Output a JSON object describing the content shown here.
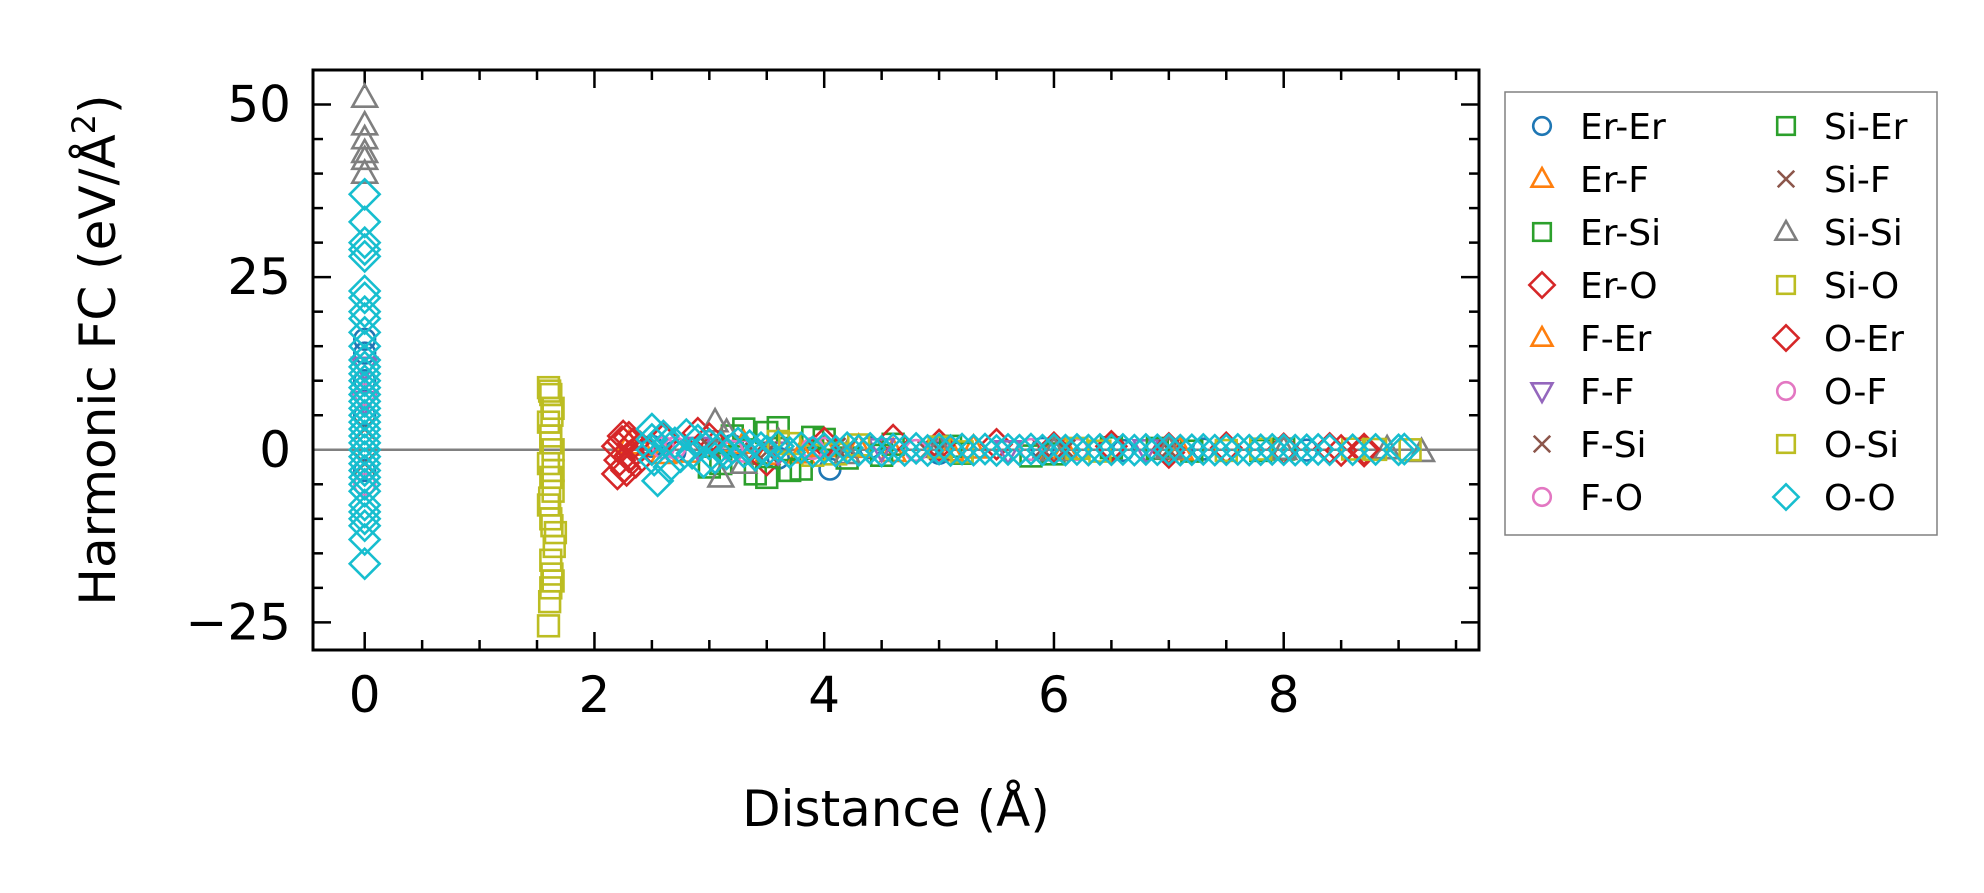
{
  "chart_data": {
    "type": "scatter",
    "title": "",
    "xlabel": "Distance (Å)",
    "ylabel_main": "Harmonic FC (eV/Å",
    "ylabel_sup": "2",
    "ylabel_tail": ")",
    "xlim": [
      -0.45,
      9.7
    ],
    "ylim": [
      -29,
      55
    ],
    "xticks": [
      0,
      2,
      4,
      6,
      8
    ],
    "yticks": [
      -25,
      0,
      25,
      50
    ],
    "xtick_labels": [
      "0",
      "2",
      "4",
      "6",
      "8"
    ],
    "ytick_labels": [
      "−25",
      "0",
      "25",
      "50"
    ],
    "zero_line": true,
    "grid": false,
    "legend_position": "right, outside plot",
    "series": [
      {
        "name": "Er-Er",
        "marker": "circle",
        "color": "#1f77b4",
        "points": [
          [
            0,
            16
          ],
          [
            0,
            14
          ],
          [
            0,
            10
          ],
          [
            0,
            5
          ],
          [
            0,
            -3
          ],
          [
            2.5,
            0.5
          ],
          [
            2.7,
            -0.3
          ],
          [
            3.2,
            0.6
          ],
          [
            3.6,
            -1.2
          ],
          [
            4.05,
            -2.8
          ],
          [
            4.4,
            0.3
          ],
          [
            5.0,
            -0.5
          ],
          [
            5.9,
            0.2
          ],
          [
            6.6,
            -0.1
          ],
          [
            7.3,
            0.1
          ],
          [
            8.2,
            -0.05
          ]
        ]
      },
      {
        "name": "Er-F",
        "marker": "triangle-up",
        "color": "#ff7f0e",
        "points": [
          [
            2.3,
            0.8
          ],
          [
            2.6,
            -0.6
          ],
          [
            3.1,
            1.1
          ],
          [
            3.5,
            -0.7
          ],
          [
            4.0,
            0.4
          ],
          [
            4.6,
            -0.3
          ],
          [
            5.3,
            0.2
          ],
          [
            6.1,
            -0.1
          ],
          [
            7.0,
            0.05
          ],
          [
            8.0,
            0.0
          ]
        ]
      },
      {
        "name": "Er-Si",
        "marker": "square",
        "color": "#2ca02c",
        "points": [
          [
            3.0,
            -2.5
          ],
          [
            3.2,
            2.0
          ],
          [
            3.4,
            -3.5
          ],
          [
            3.5,
            2.5
          ],
          [
            3.7,
            -3.0
          ],
          [
            3.9,
            1.8
          ],
          [
            4.2,
            -1.2
          ],
          [
            4.6,
            0.8
          ],
          [
            5.2,
            -0.5
          ],
          [
            5.8,
            -0.9
          ],
          [
            6.5,
            0.3
          ],
          [
            7.2,
            -0.2
          ],
          [
            8.0,
            0.1
          ]
        ]
      },
      {
        "name": "Er-O",
        "marker": "diamond",
        "color": "#d62728",
        "points": [
          [
            2.2,
            -3.5
          ],
          [
            2.25,
            2.0
          ],
          [
            2.3,
            -1.0
          ],
          [
            2.6,
            1.5
          ],
          [
            2.9,
            2.4
          ],
          [
            3.5,
            -1.5
          ],
          [
            4.6,
            1.4
          ],
          [
            5.5,
            0.8
          ],
          [
            6.5,
            0.5
          ],
          [
            7.0,
            -0.4
          ],
          [
            7.5,
            0.3
          ],
          [
            8.4,
            0.2
          ],
          [
            8.7,
            -0.2
          ]
        ]
      },
      {
        "name": "F-Er",
        "marker": "triangle-up",
        "color": "#ff7f0e",
        "points": [
          [
            2.4,
            0.6
          ],
          [
            2.8,
            -0.4
          ],
          [
            3.3,
            0.9
          ],
          [
            3.8,
            -0.5
          ],
          [
            4.3,
            0.3
          ],
          [
            5.1,
            -0.2
          ],
          [
            6.0,
            0.1
          ],
          [
            7.1,
            -0.05
          ]
        ]
      },
      {
        "name": "F-F",
        "marker": "triangle-down",
        "color": "#9467bd",
        "points": [
          [
            0,
            12
          ],
          [
            0,
            7
          ],
          [
            2.9,
            0.4
          ],
          [
            3.6,
            -0.3
          ],
          [
            4.5,
            0.2
          ],
          [
            5.6,
            -0.1
          ],
          [
            6.8,
            0.05
          ]
        ]
      },
      {
        "name": "F-Si",
        "marker": "x",
        "color": "#8c564b",
        "points": [
          [
            0,
            3
          ],
          [
            0,
            -2
          ],
          [
            3.0,
            0.5
          ],
          [
            3.4,
            -0.4
          ],
          [
            4.1,
            0.3
          ],
          [
            4.9,
            -0.2
          ],
          [
            5.9,
            0.1
          ],
          [
            7.0,
            0.0
          ]
        ]
      },
      {
        "name": "F-O",
        "marker": "circle",
        "color": "#e377c2",
        "points": [
          [
            0,
            8
          ],
          [
            0,
            -5
          ],
          [
            2.7,
            0.3
          ],
          [
            3.3,
            -0.2
          ],
          [
            4.0,
            0.2
          ],
          [
            5.0,
            -0.1
          ],
          [
            6.2,
            0.05
          ]
        ]
      },
      {
        "name": "Si-Er",
        "marker": "square",
        "color": "#2ca02c",
        "points": [
          [
            3.1,
            -2.0
          ],
          [
            3.3,
            3.0
          ],
          [
            3.5,
            -4.0
          ],
          [
            3.6,
            3.2
          ],
          [
            3.8,
            -2.8
          ],
          [
            4.0,
            1.5
          ],
          [
            4.5,
            -0.8
          ],
          [
            5.1,
            0.5
          ],
          [
            6.0,
            -0.6
          ],
          [
            6.9,
            0.2
          ],
          [
            7.8,
            -0.1
          ]
        ]
      },
      {
        "name": "Si-F",
        "marker": "x",
        "color": "#8c564b",
        "points": [
          [
            3.0,
            0.4
          ],
          [
            3.5,
            -0.3
          ],
          [
            4.2,
            0.2
          ],
          [
            5.0,
            -0.1
          ],
          [
            6.1,
            0.05
          ]
        ]
      },
      {
        "name": "Si-Si",
        "marker": "triangle-up",
        "color": "#7f7f7f",
        "points": [
          [
            0,
            51
          ],
          [
            0,
            47
          ],
          [
            0,
            45
          ],
          [
            0,
            43
          ],
          [
            0,
            42
          ],
          [
            0,
            40
          ],
          [
            3.05,
            4.0
          ],
          [
            3.1,
            -4.0
          ],
          [
            3.15,
            2.5
          ],
          [
            3.3,
            -2.0
          ],
          [
            3.6,
            1.2
          ],
          [
            4.2,
            -0.6
          ],
          [
            5.0,
            0.3
          ],
          [
            6.0,
            -0.2
          ],
          [
            7.0,
            0.1
          ],
          [
            8.0,
            0.0
          ],
          [
            8.9,
            0.1
          ],
          [
            9.2,
            -0.3
          ]
        ]
      },
      {
        "name": "Si-O",
        "marker": "square",
        "color": "#bcbd22",
        "points": [
          [
            1.6,
            9
          ],
          [
            1.62,
            8
          ],
          [
            1.64,
            6
          ],
          [
            1.6,
            4
          ],
          [
            1.62,
            2
          ],
          [
            1.64,
            0
          ],
          [
            1.6,
            -2
          ],
          [
            1.62,
            -4
          ],
          [
            1.64,
            -6
          ],
          [
            1.6,
            -8
          ],
          [
            1.62,
            -10
          ],
          [
            1.66,
            -12
          ],
          [
            1.65,
            -14
          ],
          [
            1.63,
            -18
          ],
          [
            1.62,
            -20
          ],
          [
            1.61,
            -22
          ],
          [
            1.6,
            -25.5
          ],
          [
            3.6,
            1.2
          ],
          [
            3.9,
            -0.8
          ],
          [
            4.3,
            0.7
          ],
          [
            5.2,
            -0.3
          ],
          [
            6.2,
            0.2
          ],
          [
            7.5,
            -0.1
          ],
          [
            8.6,
            0.1
          ],
          [
            9.1,
            0.0
          ]
        ]
      },
      {
        "name": "O-Er",
        "marker": "diamond",
        "color": "#d62728",
        "points": [
          [
            2.2,
            0.5
          ],
          [
            2.22,
            -1.5
          ],
          [
            2.24,
            1.2
          ],
          [
            2.26,
            -2.5
          ],
          [
            2.28,
            -3.0
          ],
          [
            2.3,
            1.8
          ],
          [
            2.32,
            -0.8
          ],
          [
            2.34,
            0.9
          ],
          [
            2.36,
            -1.8
          ],
          [
            2.4,
            0.4
          ],
          [
            3.0,
            1.6
          ],
          [
            4.0,
            1.0
          ],
          [
            5.0,
            0.7
          ],
          [
            6.0,
            0.3
          ],
          [
            7.0,
            0.2
          ],
          [
            8.0,
            0.15
          ],
          [
            8.5,
            -0.1
          ],
          [
            8.7,
            0.1
          ]
        ]
      },
      {
        "name": "O-F",
        "marker": "circle",
        "color": "#e377c2",
        "points": [
          [
            2.6,
            0.3
          ],
          [
            3.2,
            -0.2
          ],
          [
            3.9,
            0.2
          ],
          [
            4.8,
            -0.1
          ],
          [
            5.8,
            0.05
          ]
        ]
      },
      {
        "name": "O-Si",
        "marker": "square",
        "color": "#bcbd22",
        "points": [
          [
            1.61,
            8.5
          ],
          [
            1.63,
            5
          ],
          [
            1.62,
            1
          ],
          [
            1.64,
            -3
          ],
          [
            1.61,
            -7
          ],
          [
            1.63,
            -11
          ],
          [
            1.62,
            -16
          ],
          [
            1.64,
            -19
          ],
          [
            3.7,
            0.9
          ],
          [
            4.1,
            -0.6
          ],
          [
            5.0,
            0.4
          ],
          [
            6.4,
            -0.2
          ],
          [
            7.8,
            0.1
          ],
          [
            8.8,
            0.05
          ]
        ]
      },
      {
        "name": "O-O",
        "marker": "diamond",
        "color": "#17becf",
        "points": [
          [
            0,
            37
          ],
          [
            0,
            33
          ],
          [
            0,
            30
          ],
          [
            0,
            29
          ],
          [
            0,
            28
          ],
          [
            0,
            23
          ],
          [
            0,
            22
          ],
          [
            0,
            20
          ],
          [
            0,
            19
          ],
          [
            0,
            17
          ],
          [
            0,
            15
          ],
          [
            0,
            13
          ],
          [
            0,
            12
          ],
          [
            0,
            11
          ],
          [
            0,
            10
          ],
          [
            0,
            9
          ],
          [
            0,
            8
          ],
          [
            0,
            7
          ],
          [
            0,
            6
          ],
          [
            0,
            5
          ],
          [
            0,
            4
          ],
          [
            0,
            3
          ],
          [
            0,
            2
          ],
          [
            0,
            1
          ],
          [
            0,
            0
          ],
          [
            0,
            -1
          ],
          [
            0,
            -2
          ],
          [
            0,
            -3
          ],
          [
            0,
            -4
          ],
          [
            0,
            -5
          ],
          [
            0,
            -6
          ],
          [
            0,
            -8
          ],
          [
            0,
            -9
          ],
          [
            0,
            -10
          ],
          [
            0,
            -11
          ],
          [
            0,
            -13
          ],
          [
            0,
            -16.5
          ],
          [
            2.5,
            3.0
          ],
          [
            2.5,
            1.5
          ],
          [
            2.5,
            0
          ],
          [
            2.52,
            -1.5
          ],
          [
            2.55,
            -4.5
          ],
          [
            2.6,
            2.0
          ],
          [
            2.65,
            -2.5
          ],
          [
            2.7,
            1.0
          ],
          [
            2.75,
            -1.0
          ],
          [
            2.8,
            2.2
          ],
          [
            2.85,
            -0.5
          ],
          [
            2.9,
            1.4
          ],
          [
            2.95,
            -1.8
          ],
          [
            3.0,
            0.8
          ],
          [
            3.05,
            -1.2
          ],
          [
            3.1,
            0.4
          ],
          [
            3.15,
            -0.6
          ],
          [
            3.2,
            0.2
          ],
          [
            3.25,
            1.0
          ],
          [
            3.3,
            -0.3
          ],
          [
            3.35,
            0.6
          ],
          [
            3.4,
            -0.8
          ],
          [
            3.45,
            0.3
          ],
          [
            3.5,
            -0.2
          ],
          [
            3.6,
            0.5
          ],
          [
            3.7,
            -0.4
          ],
          [
            3.8,
            0.3
          ],
          [
            3.9,
            -0.3
          ],
          [
            4.0,
            0.2
          ],
          [
            4.1,
            -0.2
          ],
          [
            4.2,
            0.3
          ],
          [
            4.3,
            -0.1
          ],
          [
            4.4,
            0.2
          ],
          [
            4.5,
            -0.2
          ],
          [
            4.6,
            0.1
          ],
          [
            4.7,
            -0.1
          ],
          [
            4.8,
            0.2
          ],
          [
            4.9,
            -0.1
          ],
          [
            5.0,
            0.1
          ],
          [
            5.1,
            -0.1
          ],
          [
            5.2,
            0.1
          ],
          [
            5.3,
            -0.05
          ],
          [
            5.4,
            0.1
          ],
          [
            5.5,
            -0.1
          ],
          [
            5.6,
            0.05
          ],
          [
            5.7,
            -0.05
          ],
          [
            5.8,
            0.1
          ],
          [
            5.9,
            -0.05
          ],
          [
            6.0,
            0.05
          ],
          [
            6.1,
            -0.05
          ],
          [
            6.2,
            0.05
          ],
          [
            6.3,
            -0.05
          ],
          [
            6.4,
            0.05
          ],
          [
            6.5,
            0.0
          ],
          [
            6.6,
            0.05
          ],
          [
            6.7,
            -0.05
          ],
          [
            6.8,
            0.05
          ],
          [
            6.9,
            0.0
          ],
          [
            7.0,
            0.05
          ],
          [
            7.1,
            -0.05
          ],
          [
            7.2,
            0.0
          ],
          [
            7.3,
            0.05
          ],
          [
            7.4,
            -0.05
          ],
          [
            7.5,
            0.0
          ],
          [
            7.6,
            0.05
          ],
          [
            7.7,
            -0.05
          ],
          [
            7.8,
            0.0
          ],
          [
            7.9,
            0.05
          ],
          [
            8.0,
            0.0
          ],
          [
            8.1,
            -0.05
          ],
          [
            8.2,
            0.0
          ],
          [
            8.3,
            0.05
          ],
          [
            8.4,
            0.0
          ],
          [
            8.6,
            0.0
          ],
          [
            8.8,
            0.05
          ],
          [
            9.0,
            0.0
          ],
          [
            9.05,
            0.1
          ]
        ]
      }
    ]
  }
}
